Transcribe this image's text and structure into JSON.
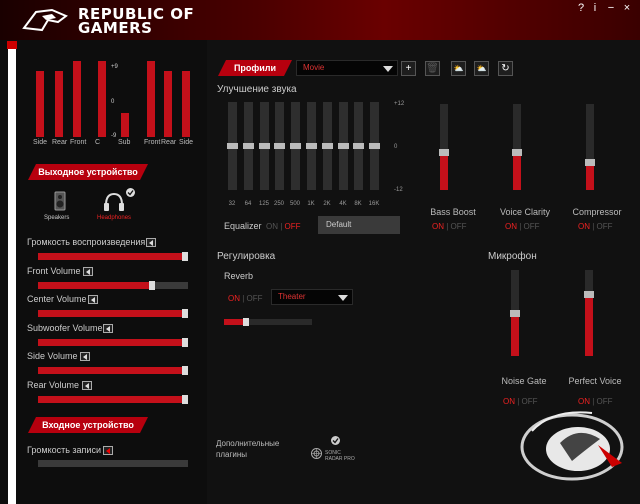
{
  "header": {
    "brand_line1": "REPUBLIC OF",
    "brand_line2": "GAMERS",
    "controls": [
      "?",
      "i",
      "−",
      "×"
    ]
  },
  "speakers": {
    "channels": [
      {
        "label": "Side",
        "level": 0.87
      },
      {
        "label": "Rear",
        "level": 0.87
      },
      {
        "label": "Front",
        "level": 1.0
      },
      {
        "label": "C",
        "level": 1.0
      },
      {
        "label": "Sub",
        "level": 0.31
      },
      {
        "label": "Front",
        "level": 1.0
      },
      {
        "label": "Rear",
        "level": 0.87
      },
      {
        "label": "Side",
        "level": 0.87
      }
    ],
    "scale": [
      "+9",
      "0",
      "-9"
    ]
  },
  "output": {
    "title": "Выходное устройство",
    "devices": [
      {
        "label": "Speakers",
        "selected": false
      },
      {
        "label": "Headphones",
        "selected": true
      }
    ]
  },
  "volumes": [
    {
      "label": "Громкость воспроизведения",
      "value": 1.0
    },
    {
      "label": "Front Volume",
      "value": 0.76
    },
    {
      "label": "Center Volume",
      "value": 1.0
    },
    {
      "label": "Subwoofer Volume",
      "value": 1.0
    },
    {
      "label": "Side Volume",
      "value": 1.0
    },
    {
      "label": "Rear Volume",
      "value": 1.0
    }
  ],
  "input": {
    "title": "Входное устройство",
    "record_label": "Громкость записи",
    "record_value": 0.0
  },
  "profiles": {
    "label": "Профили",
    "selected": "Movie",
    "tools": [
      "+",
      "🗑",
      "⛅",
      "⛅",
      "↻"
    ]
  },
  "enhancement": {
    "title": "Улучшение звука",
    "eq_bands": [
      {
        "freq": "32",
        "level": 0.5
      },
      {
        "freq": "64",
        "level": 0.5
      },
      {
        "freq": "125",
        "level": 0.5
      },
      {
        "freq": "250",
        "level": 0.5
      },
      {
        "freq": "500",
        "level": 0.5
      },
      {
        "freq": "1K",
        "level": 0.5
      },
      {
        "freq": "2K",
        "level": 0.5
      },
      {
        "freq": "4K",
        "level": 0.5
      },
      {
        "freq": "8K",
        "level": 0.5
      },
      {
        "freq": "16K",
        "level": 0.5
      }
    ],
    "eq_scale": [
      "+12",
      "0",
      "-12"
    ],
    "equalizer_label": "Equalizer",
    "equalizer_state": "off",
    "preset": "Default",
    "on": "ON",
    "off": "OFF",
    "sep": "|",
    "effects": [
      {
        "label": "Bass Boost",
        "level": 0.44,
        "state": "on"
      },
      {
        "label": "Voice Clarity",
        "level": 0.44,
        "state": "on"
      },
      {
        "label": "Compressor",
        "level": 0.33,
        "state": "on"
      }
    ]
  },
  "regulation": {
    "title": "Регулировка",
    "reverb_label": "Reverb",
    "reverb_state": "on",
    "reverb_preset": "Theater",
    "reverb_level": 0.25
  },
  "microphone": {
    "title": "Микрофон",
    "effects": [
      {
        "label": "Noise Gate",
        "level": 0.5,
        "state": "on"
      },
      {
        "label": "Perfect Voice",
        "level": 0.72,
        "state": "on"
      }
    ]
  },
  "addons": {
    "label_line1": "Дополнительные",
    "label_line2": "плагины",
    "plugin_line1": "SONIC",
    "plugin_line2": "RADAR PRO"
  },
  "colors": {
    "accent": "#c4101a",
    "brand_red": "#b7000e"
  }
}
